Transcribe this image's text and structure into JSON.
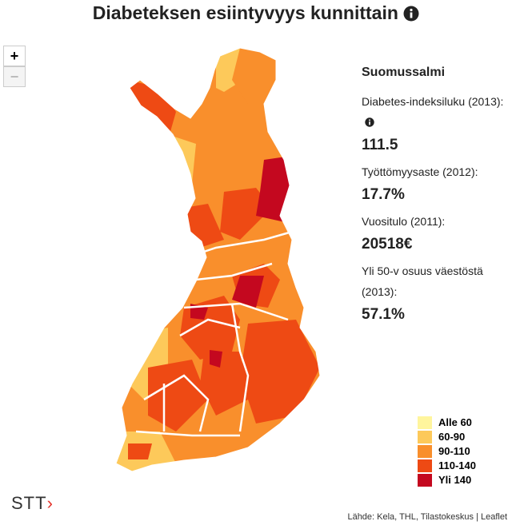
{
  "title": "Diabeteksen esiintyvyys kunnittain",
  "zoom": {
    "in": "+",
    "out": "−"
  },
  "info": {
    "name": "Suomussalmi",
    "fields": [
      {
        "label": "Diabetes-indeksiluku (2013):",
        "value": "111.5",
        "icon": true
      },
      {
        "label": "Työttömyysaste (2012):",
        "value": "17.7%"
      },
      {
        "label": "Vuositulo (2011):",
        "value": "20518€"
      },
      {
        "label": "Yli 50-v osuus väestöstä (2013):",
        "value": "57.1%"
      }
    ]
  },
  "legend": {
    "items": [
      {
        "label": "Alle 60",
        "color": "#fff59d"
      },
      {
        "label": "60-90",
        "color": "#fdc95a"
      },
      {
        "label": "90-110",
        "color": "#f98f2c"
      },
      {
        "label": "110-140",
        "color": "#ee4a14"
      },
      {
        "label": "Yli 140",
        "color": "#c4081f"
      }
    ]
  },
  "logo": "STT",
  "attribution": "Lähde: Kela, THL, Tilastokeskus | Leaflet"
}
